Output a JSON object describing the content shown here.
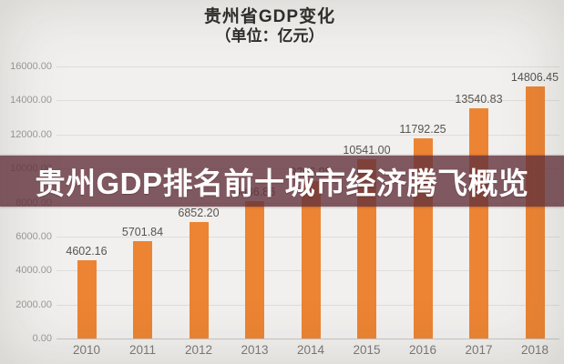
{
  "title": {
    "line1": "贵州省GDP变化",
    "line2": "（单位：亿元）"
  },
  "banner": {
    "text": "贵州GDP排名前十城市经济腾飞概览",
    "bg_color": "#64323C",
    "bg_opacity": 0.8,
    "text_color": "#FFFFFF"
  },
  "chart_data": {
    "type": "bar",
    "title": "贵州省GDP变化（单位：亿元）",
    "categories": [
      "2010",
      "2011",
      "2012",
      "2013",
      "2014",
      "2015",
      "2016",
      "2017",
      "2018"
    ],
    "values": [
      4602.16,
      5701.84,
      6852.2,
      8086.86,
      9266.99,
      10541.0,
      11792.25,
      13540.83,
      14806.45
    ],
    "value_labels": [
      "4602.16",
      "5701.84",
      "6852.20",
      "8086.86",
      "9266.99",
      "10541.00",
      "11792.25",
      "13540.83",
      "14806.45"
    ],
    "xlabel": "",
    "ylabel": "",
    "ylim": [
      0,
      16000
    ],
    "ytick_step": 2000,
    "ytick_labels": [
      "0.00",
      "2000.00",
      "4000.00",
      "6000.00",
      "8000.00",
      "10000.00",
      "12000.00",
      "14000.00",
      "16000.00"
    ],
    "bar_color": "#EC8433",
    "grid": true,
    "legend_position": "none"
  }
}
